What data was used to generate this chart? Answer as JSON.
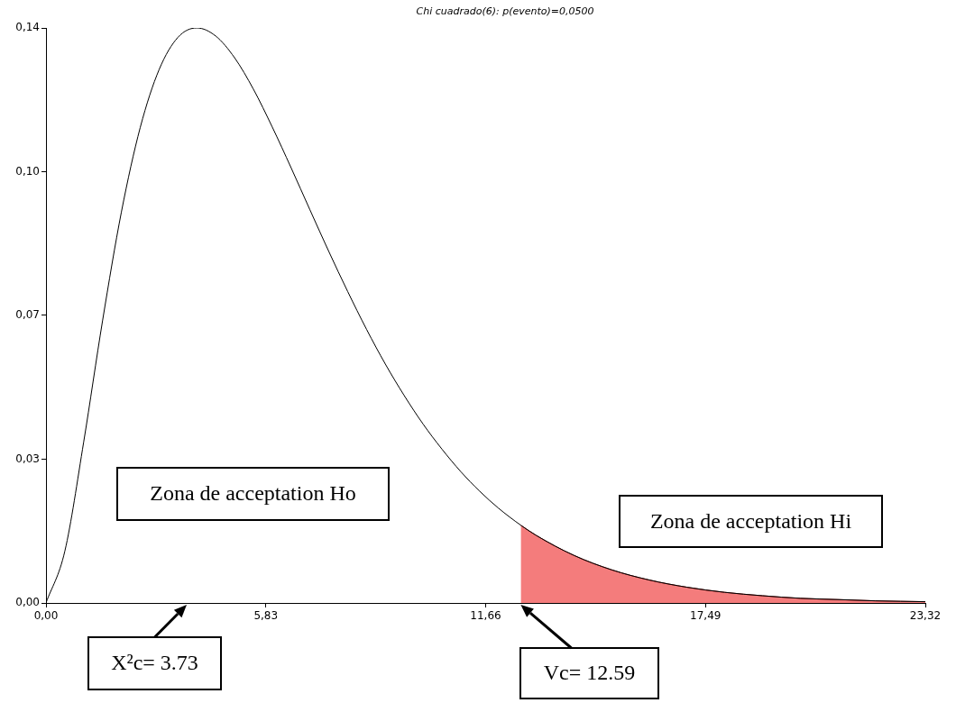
{
  "chart_data": {
    "type": "line",
    "title": "Chi cuadrado(6): p(evento)=0,0500",
    "xlim": [
      0,
      23.32
    ],
    "xticks": [
      {
        "value": 0,
        "label": "0,00"
      },
      {
        "value": 5.83,
        "label": "5,83"
      },
      {
        "value": 11.66,
        "label": "11,66"
      },
      {
        "value": 17.49,
        "label": "17,49"
      },
      {
        "value": 23.32,
        "label": "23,32"
      }
    ],
    "ylim": [
      0,
      0.1353
    ],
    "yticks": [
      {
        "value": 0,
        "label": "0,00"
      },
      {
        "value": 0.0338,
        "label": "0,03"
      },
      {
        "value": 0.0677,
        "label": "0,07"
      },
      {
        "value": 0.1015,
        "label": "0,10"
      },
      {
        "value": 0.1353,
        "label": "0,14"
      }
    ],
    "grid": false,
    "legend": false,
    "marker": "none",
    "line_style": "solid",
    "series": [
      {
        "color": "#000000",
        "x": [
          0,
          0.5,
          1,
          1.5,
          2,
          2.5,
          3,
          3.5,
          4,
          4.5,
          5,
          5.5,
          6,
          6.5,
          7,
          7.5,
          8,
          8.5,
          9,
          9.5,
          10,
          10.5,
          11,
          11.5,
          12,
          12.59,
          13,
          14,
          15,
          16,
          17,
          18,
          19,
          20,
          21,
          22,
          23.32
        ],
        "values": [
          0,
          0.0122,
          0.0379,
          0.0664,
          0.092,
          0.1119,
          0.1255,
          0.1331,
          0.1353,
          0.1334,
          0.1283,
          0.1209,
          0.112,
          0.1024,
          0.0925,
          0.0827,
          0.0733,
          0.0644,
          0.0562,
          0.0488,
          0.0421,
          0.0362,
          0.0309,
          0.0263,
          0.0223,
          0.0183,
          0.0159,
          0.0112,
          0.0078,
          0.0054,
          0.0037,
          0.0025,
          0.0017,
          0.0011,
          0.0008,
          0.0005,
          0.0003
        ]
      },
      {
        "type": "area",
        "color": "#f47c7c",
        "x": [
          12.59,
          13,
          14,
          15,
          16,
          17,
          18,
          19,
          20,
          21,
          22,
          23.32
        ],
        "values": [
          0.0183,
          0.0159,
          0.0112,
          0.0078,
          0.0054,
          0.0037,
          0.0025,
          0.0017,
          0.0011,
          0.0008,
          0.0005,
          0.0003
        ]
      }
    ],
    "annotations": [
      "Zona de acceptation Ho",
      "Zona de acceptation Hi",
      "X²c= 3.73",
      {
        "text": "Vc= 12.59",
        "x": 12.59,
        "y": 0
      }
    ]
  }
}
